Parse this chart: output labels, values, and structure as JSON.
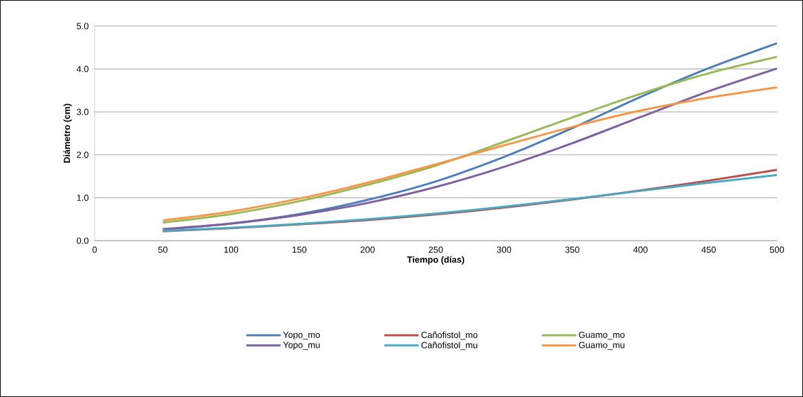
{
  "chart_data": {
    "type": "line",
    "xlabel": "Tiempo (días)",
    "ylabel": "Diámetro (cm)",
    "x": [
      50,
      100,
      150,
      200,
      250,
      300,
      350,
      400,
      450,
      500
    ],
    "series": [
      {
        "name": "Yopo_mo",
        "color": "#4a7ebb",
        "values": [
          0.26,
          0.4,
          0.62,
          0.95,
          1.38,
          1.95,
          2.62,
          3.35,
          4.02,
          4.6
        ]
      },
      {
        "name": "Cañofistol_mo",
        "color": "#be4b48",
        "values": [
          0.22,
          0.29,
          0.38,
          0.48,
          0.61,
          0.77,
          0.96,
          1.17,
          1.4,
          1.65
        ]
      },
      {
        "name": "Guamo_mo",
        "color": "#98b954",
        "values": [
          0.42,
          0.62,
          0.92,
          1.3,
          1.75,
          2.3,
          2.87,
          3.42,
          3.9,
          4.28
        ]
      },
      {
        "name": "Yopo_mu",
        "color": "#7d60a0",
        "values": [
          0.27,
          0.4,
          0.6,
          0.88,
          1.25,
          1.72,
          2.27,
          2.88,
          3.48,
          4.01
        ]
      },
      {
        "name": "Cañofistol_mu",
        "color": "#46aac5",
        "values": [
          0.23,
          0.3,
          0.39,
          0.5,
          0.63,
          0.79,
          0.97,
          1.16,
          1.35,
          1.53
        ]
      },
      {
        "name": "Guamo_mu",
        "color": "#f79646",
        "values": [
          0.47,
          0.68,
          0.98,
          1.35,
          1.78,
          2.22,
          2.65,
          3.03,
          3.33,
          3.57
        ]
      }
    ],
    "xlim": [
      0,
      500
    ],
    "xticks": [
      0,
      50,
      100,
      150,
      200,
      250,
      300,
      350,
      400,
      450,
      500
    ],
    "ylim": [
      0,
      5
    ],
    "yticks": [
      {
        "value": 0,
        "label": "0.0"
      },
      {
        "value": 1,
        "label": "1.0"
      },
      {
        "value": 2,
        "label": "2.0"
      },
      {
        "value": 3,
        "label": "3.0"
      },
      {
        "value": 4,
        "label": "4.0"
      },
      {
        "value": 5,
        "label": "5.0"
      }
    ],
    "grid": "y",
    "legend": "bottom",
    "marker": "none",
    "line_style": "solid"
  }
}
